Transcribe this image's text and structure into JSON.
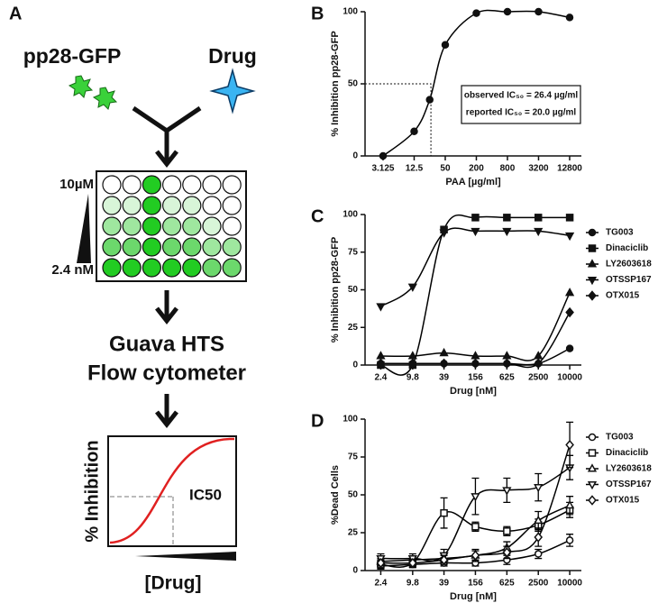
{
  "diagram": {
    "panel": "A",
    "input_label": "pp28-GFP",
    "drug_label": "Drug",
    "conc_high": "10µM",
    "conc_low": "2.4 nM",
    "instrument_line1": "Guava HTS",
    "instrument_line2": "Flow cytometer",
    "inset_y_label": "% Inhibition",
    "inset_marker": "IC50",
    "inset_x_label": "[Drug]"
  },
  "chart_data": [
    {
      "type": "line",
      "panel": "B",
      "y_label": "% Inhibition pp28-GFP",
      "x_label": "PAA [µg/ml]",
      "xscale": "log",
      "x": [
        3.125,
        12.5,
        25,
        50,
        200,
        800,
        3200,
        12800
      ],
      "series": [
        {
          "name": null,
          "color": "#000000",
          "marker": "circle",
          "values": [
            0,
            17,
            39,
            77,
            99,
            100,
            100,
            96
          ]
        }
      ],
      "xlim": [
        1.4,
        21600
      ],
      "xticks": [
        3.125,
        12.5,
        50,
        200,
        800,
        3200,
        12800
      ],
      "ylim": [
        0,
        100
      ],
      "yticks": [
        0,
        50,
        100
      ],
      "ic50_line": {
        "x": 26.4,
        "y": 50
      },
      "annotations": [
        "observed IC₅₀ = 26.4 µg/ml",
        "reported IC₅₀ = 20.0 µg/ml"
      ],
      "filled": true
    },
    {
      "type": "line",
      "panel": "C",
      "y_label": "% Inhibition pp28-GFP",
      "x_label": "Drug [nM]",
      "xscale": "log",
      "x": [
        2.4,
        9.8,
        39,
        156,
        625,
        2500,
        10000
      ],
      "series": [
        {
          "name": "TG003",
          "color": "#000000",
          "marker": "circle",
          "values": [
            1,
            1,
            1,
            1,
            1,
            1,
            11
          ]
        },
        {
          "name": "Dinaciclib",
          "color": "#000000",
          "marker": "square",
          "values": [
            0,
            0,
            90,
            98,
            98,
            98,
            98
          ]
        },
        {
          "name": "LY2603618",
          "color": "#000000",
          "marker": "triangle-up",
          "values": [
            6,
            6,
            8,
            6,
            6,
            6,
            48
          ]
        },
        {
          "name": "OTSSP167",
          "color": "#000000",
          "marker": "triangle-down",
          "values": [
            39,
            52,
            88,
            89,
            89,
            89,
            86
          ]
        },
        {
          "name": "OTX015",
          "color": "#000000",
          "marker": "diamond",
          "values": [
            1,
            1,
            1,
            1,
            1,
            1,
            35
          ]
        }
      ],
      "xlim": [
        1.2,
        16700
      ],
      "xticks": [
        2.4,
        9.8,
        39,
        156,
        625,
        2500,
        10000
      ],
      "ylim": [
        0,
        100
      ],
      "yticks": [
        0,
        25,
        50,
        75,
        100
      ],
      "filled": true
    },
    {
      "type": "line",
      "panel": "D",
      "y_label": "%Dead Cells",
      "x_label": "Drug [nM]",
      "xscale": "log",
      "x": [
        2.4,
        9.8,
        39,
        156,
        625,
        2500,
        10000
      ],
      "series": [
        {
          "name": "TG003",
          "color": "#000000",
          "marker": "circle",
          "values": [
            3,
            4,
            5,
            5,
            7,
            11,
            20
          ],
          "errors": [
            2,
            2,
            2,
            2,
            3,
            3,
            4
          ]
        },
        {
          "name": "Dinaciclib",
          "color": "#000000",
          "marker": "square",
          "values": [
            4,
            5,
            38,
            29,
            26,
            30,
            40
          ],
          "errors": [
            3,
            3,
            10,
            3,
            3,
            4,
            5
          ]
        },
        {
          "name": "LY2603618",
          "color": "#000000",
          "marker": "triangle-up",
          "values": [
            6,
            7,
            8,
            10,
            15,
            33,
            43
          ],
          "errors": [
            2,
            2,
            3,
            3,
            4,
            6,
            6
          ]
        },
        {
          "name": "OTSSP167",
          "color": "#000000",
          "marker": "triangle-down",
          "values": [
            8,
            8,
            10,
            49,
            53,
            55,
            68
          ],
          "errors": [
            3,
            3,
            4,
            12,
            8,
            9,
            8
          ]
        },
        {
          "name": "OTX015",
          "color": "#000000",
          "marker": "diamond",
          "values": [
            5,
            5,
            7,
            10,
            12,
            22,
            83
          ],
          "errors": [
            2,
            2,
            3,
            4,
            4,
            6,
            15
          ]
        }
      ],
      "xlim": [
        1.2,
        16700
      ],
      "xticks": [
        2.4,
        9.8,
        39,
        156,
        625,
        2500,
        10000
      ],
      "ylim": [
        0,
        100
      ],
      "yticks": [
        0,
        25,
        50,
        75,
        100
      ],
      "filled": false
    }
  ]
}
